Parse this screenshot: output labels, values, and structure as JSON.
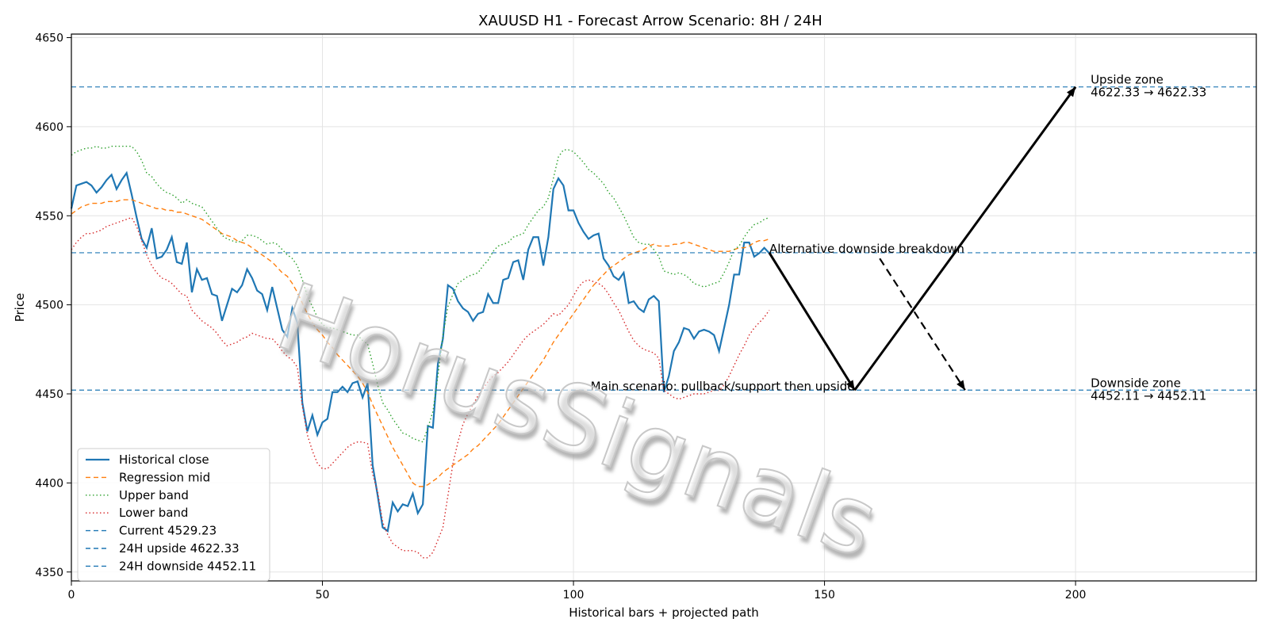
{
  "chart_data": {
    "type": "line",
    "title": "XAUUSD H1 - Forecast Arrow Scenario: 8H / 24H",
    "xlabel": "Historical bars + projected path",
    "ylabel": "Price",
    "xlim": [
      0,
      236
    ],
    "ylim": [
      4345,
      4652
    ],
    "x_ticks": [
      0,
      50,
      100,
      150,
      200
    ],
    "y_ticks": [
      4350,
      4400,
      4450,
      4500,
      4550,
      4600,
      4650
    ],
    "grid": true,
    "legend_position": "bottom-left",
    "watermark": "HorusSignals",
    "series": [
      {
        "name": "Historical close",
        "style": "solid",
        "color": "#1f77b4",
        "values": [
          4554,
          4567,
          4568,
          4569,
          4567,
          4563,
          4566,
          4570,
          4573,
          4565,
          4570,
          4574,
          4562,
          4549,
          4537,
          4532,
          4543,
          4526,
          4527,
          4531,
          4538,
          4524,
          4523,
          4535,
          4507,
          4520,
          4514,
          4515,
          4506,
          4505,
          4491,
          4500,
          4509,
          4507,
          4511,
          4520,
          4515,
          4508,
          4506,
          4497,
          4510,
          4498,
          4486,
          4482,
          4498,
          4490,
          4445,
          4429,
          4438,
          4427,
          4434,
          4436,
          4451,
          4451,
          4454,
          4451,
          4456,
          4457,
          4448,
          4456,
          4410,
          4393,
          4375,
          4373,
          4389,
          4384,
          4388,
          4387,
          4394,
          4383,
          4388,
          4432,
          4431,
          4467,
          4481,
          4511,
          4509,
          4502,
          4498,
          4496,
          4491,
          4495,
          4496,
          4506,
          4501,
          4501,
          4514,
          4515,
          4524,
          4525,
          4514,
          4531,
          4538,
          4538,
          4522,
          4538,
          4565,
          4571,
          4567,
          4553,
          4553,
          4546,
          4541,
          4537,
          4539,
          4540,
          4526,
          4522,
          4516,
          4514,
          4518,
          4501,
          4502,
          4498,
          4496,
          4503,
          4505,
          4502,
          4451,
          4460,
          4474,
          4479,
          4487,
          4486,
          4481,
          4485,
          4486,
          4485,
          4483,
          4474,
          4487,
          4500,
          4517,
          4517,
          4535,
          4535,
          4527,
          4529,
          4532,
          4529
        ]
      },
      {
        "name": "Regression mid",
        "style": "dashed",
        "color": "#ff7f0e",
        "values": [
          4551,
          4553,
          4555,
          4556,
          4557,
          4557,
          4557,
          4558,
          4558,
          4558,
          4559,
          4559,
          4559,
          4558,
          4557,
          4556,
          4555,
          4554,
          4554,
          4553,
          4553,
          4552,
          4552,
          4551,
          4550,
          4549,
          4548,
          4546,
          4544,
          4542,
          4540,
          4539,
          4538,
          4536,
          4535,
          4534,
          4532,
          4530,
          4528,
          4526,
          4524,
          4521,
          4518,
          4516,
          4512,
          4507,
          4501,
          4495,
          4490,
          4486,
          4483,
          4479,
          4476,
          4472,
          4469,
          4466,
          4463,
          4460,
          4456,
          4451,
          4444,
          4438,
          4432,
          4426,
          4420,
          4415,
          4410,
          4405,
          4400,
          4398,
          4398,
          4399,
          4401,
          4403,
          4406,
          4408,
          4410,
          4412,
          4414,
          4416,
          4419,
          4421,
          4424,
          4427,
          4430,
          4433,
          4437,
          4441,
          4445,
          4449,
          4453,
          4457,
          4461,
          4465,
          4469,
          4474,
          4479,
          4483,
          4487,
          4491,
          4495,
          4499,
          4503,
          4507,
          4511,
          4514,
          4517,
          4520,
          4522,
          4524,
          4526,
          4528,
          4529,
          4530,
          4531,
          4533,
          4534,
          4533,
          4533,
          4533,
          4534,
          4534,
          4535,
          4535,
          4534,
          4533,
          4532,
          4531,
          4530,
          4530,
          4530,
          4530,
          4531,
          4532,
          4532,
          4533,
          4535,
          4536,
          4536,
          4537
        ]
      },
      {
        "name": "Upper band",
        "style": "dotted",
        "color": "#2ca02c",
        "values": [
          4584,
          4586,
          4587,
          4588,
          4588,
          4589,
          4588,
          4588,
          4589,
          4589,
          4589,
          4589,
          4589,
          4586,
          4581,
          4574,
          4572,
          4568,
          4565,
          4563,
          4562,
          4560,
          4557,
          4559,
          4557,
          4556,
          4555,
          4551,
          4547,
          4543,
          4539,
          4537,
          4536,
          4535,
          4536,
          4539,
          4539,
          4538,
          4536,
          4534,
          4535,
          4534,
          4531,
          4528,
          4526,
          4522,
          4514,
          4505,
          4499,
          4493,
          4489,
          4487,
          4487,
          4486,
          4485,
          4484,
          4483,
          4483,
          4480,
          4478,
          4467,
          4455,
          4445,
          4441,
          4436,
          4432,
          4428,
          4427,
          4425,
          4424,
          4423,
          4431,
          4440,
          4460,
          4483,
          4499,
          4506,
          4512,
          4514,
          4516,
          4517,
          4518,
          4522,
          4525,
          4530,
          4533,
          4534,
          4535,
          4538,
          4539,
          4540,
          4545,
          4549,
          4553,
          4555,
          4560,
          4571,
          4583,
          4587,
          4587,
          4586,
          4583,
          4580,
          4576,
          4574,
          4571,
          4568,
          4563,
          4560,
          4555,
          4550,
          4544,
          4538,
          4535,
          4534,
          4534,
          4531,
          4527,
          4519,
          4518,
          4517,
          4518,
          4517,
          4515,
          4512,
          4511,
          4510,
          4511,
          4512,
          4513,
          4518,
          4524,
          4531,
          4533,
          4538,
          4542,
          4545,
          4546,
          4548,
          4549
        ]
      },
      {
        "name": "Lower band",
        "style": "dotted",
        "color": "#d62728",
        "values": [
          4531,
          4535,
          4538,
          4540,
          4540,
          4541,
          4542,
          4544,
          4545,
          4546,
          4547,
          4548,
          4549,
          4544,
          4536,
          4528,
          4522,
          4518,
          4515,
          4514,
          4512,
          4509,
          4506,
          4505,
          4497,
          4494,
          4491,
          4489,
          4487,
          4484,
          4480,
          4477,
          4478,
          4479,
          4481,
          4482,
          4484,
          4483,
          4482,
          4481,
          4481,
          4478,
          4474,
          4471,
          4469,
          4465,
          4443,
          4427,
          4418,
          4411,
          4408,
          4408,
          4411,
          4414,
          4417,
          4420,
          4422,
          4423,
          4423,
          4422,
          4405,
          4395,
          4378,
          4371,
          4366,
          4364,
          4362,
          4362,
          4362,
          4361,
          4358,
          4358,
          4361,
          4368,
          4375,
          4393,
          4411,
          4423,
          4433,
          4439,
          4444,
          4449,
          4453,
          4457,
          4460,
          4462,
          4465,
          4468,
          4472,
          4476,
          4480,
          4483,
          4485,
          4487,
          4489,
          4492,
          4495,
          4494,
          4497,
          4500,
          4505,
          4510,
          4513,
          4514,
          4513,
          4512,
          4510,
          4506,
          4501,
          4497,
          4491,
          4485,
          4480,
          4477,
          4475,
          4474,
          4473,
          4470,
          4452,
          4450,
          4448,
          4447,
          4448,
          4449,
          4450,
          4450,
          4450,
          4451,
          4452,
          4452,
          4455,
          4460,
          4466,
          4472,
          4477,
          4483,
          4487,
          4490,
          4493,
          4497
        ]
      },
      {
        "name": "Current 4529.23",
        "style": "dashed",
        "color": "#1f77b4",
        "y": 4529.23
      },
      {
        "name": "24H upside 4622.33",
        "style": "dashed",
        "color": "#1f77b4",
        "y": 4622.33
      },
      {
        "name": "24H downside 4452.11",
        "style": "dashed",
        "color": "#1f77b4",
        "y": 4452.11
      }
    ],
    "arrows": [
      {
        "from": [
          139,
          4529.23
        ],
        "to": [
          156,
          4452.11
        ],
        "style": "solid"
      },
      {
        "from": [
          156,
          4452.11
        ],
        "to": [
          200,
          4622.33
        ],
        "style": "solid"
      },
      {
        "from": [
          161,
          4526
        ],
        "to": [
          178,
          4452.11
        ],
        "style": "dashed"
      }
    ],
    "annotations": [
      {
        "label": "Upside zone",
        "text": "4622.33 → 4622.33",
        "x": 203,
        "y": 4622.33
      },
      {
        "label": "Downside zone",
        "text": "4452.11 → 4452.11",
        "x": 203,
        "y": 4452.11
      },
      {
        "text": "Alternative downside breakdown",
        "x": 139,
        "y": 4529.23
      },
      {
        "text": "Main scenario: pullback/support then upside",
        "x": 156,
        "y": 4452.11
      }
    ],
    "colors": {
      "blue": "#1f77b4",
      "orange": "#ff7f0e",
      "green": "#2ca02c",
      "red": "#d62728",
      "arrow": "#000000"
    }
  }
}
